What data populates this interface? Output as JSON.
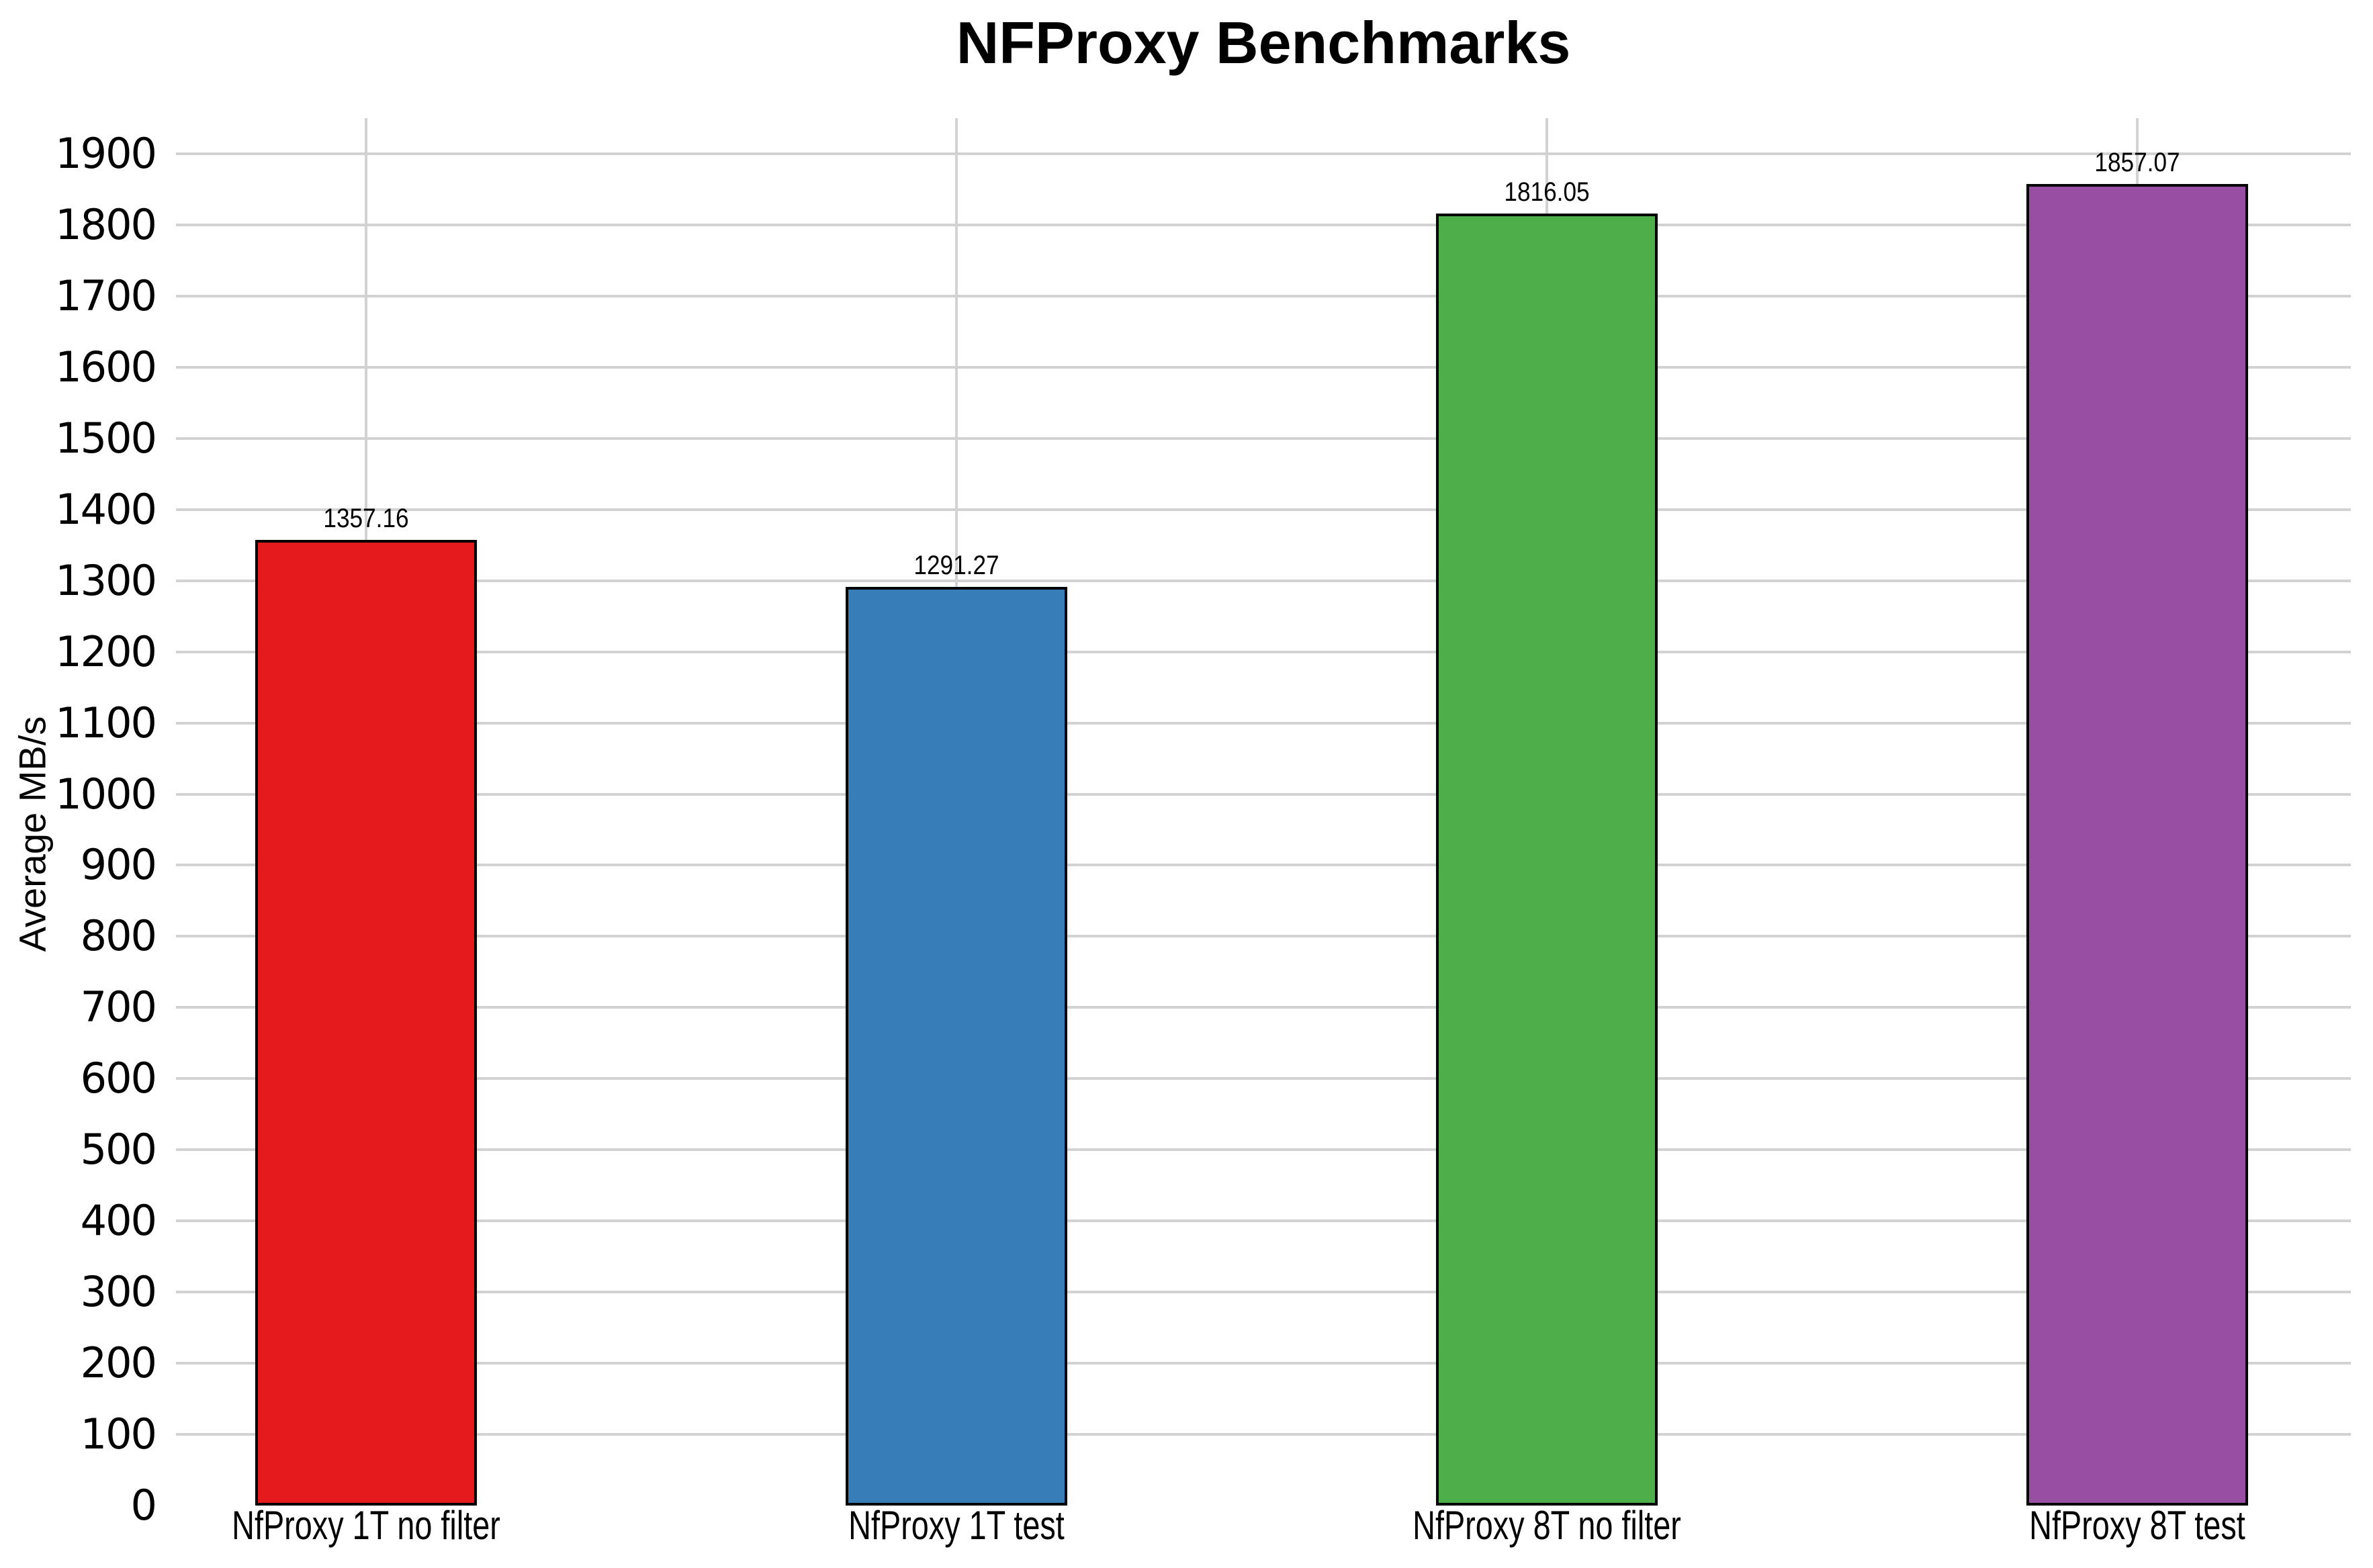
{
  "chart_data": {
    "type": "bar",
    "title": "NFProxy Benchmarks",
    "xlabel": "",
    "ylabel": "Average MB/s",
    "categories": [
      "NfProxy 1T no filter",
      "NfProxy 1T test",
      "NfProxy 8T no filter",
      "NfProxy 8T test"
    ],
    "values": [
      1357.16,
      1291.27,
      1816.05,
      1857.07
    ],
    "value_labels": [
      "1357.16",
      "1291.27",
      "1816.05",
      "1857.07"
    ],
    "bar_colors": [
      "#e41a1c",
      "#377eb8",
      "#4daf4a",
      "#984ea3"
    ],
    "bar_edge_color": "#000000",
    "ylim": [
      0,
      1950
    ],
    "yticks": [
      0,
      100,
      200,
      300,
      400,
      500,
      600,
      700,
      800,
      900,
      1000,
      1100,
      1200,
      1300,
      1400,
      1500,
      1600,
      1700,
      1800,
      1900
    ],
    "ytick_step": 100,
    "grid": {
      "horizontal": true,
      "vertical_at_category_centers": true,
      "color": "#d2d2d2"
    },
    "background": "#ffffff",
    "text_color": "#000000",
    "legend": "none",
    "value_label_position": "above-bar"
  }
}
